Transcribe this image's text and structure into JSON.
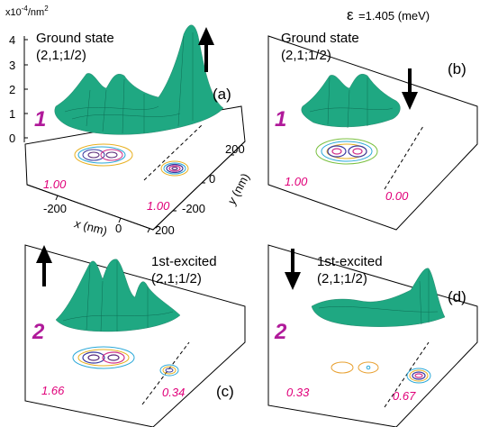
{
  "header": {
    "ylabel_prefix": "x10",
    "ylabel_exp": "-4",
    "ylabel_unit": "/nm",
    "ylabel_unit_exp": "2",
    "epsilon_symbol": "ε",
    "epsilon_text": "=1.405 (meV)"
  },
  "z_ticks": [
    "4",
    "3",
    "2",
    "1",
    "0"
  ],
  "axes": {
    "x_label": "x (nm)",
    "y_label": "y (nm)",
    "x_ticks": [
      "-200",
      "0",
      "200"
    ],
    "y_ticks": [
      "200",
      "0",
      "-200"
    ]
  },
  "panels": [
    {
      "id": "a",
      "letter": "(a)",
      "state": "Ground state",
      "quantum": "(2,1;1/2)",
      "index": "1",
      "spin": "up",
      "left_value": "1.00",
      "right_value": "1.00"
    },
    {
      "id": "b",
      "letter": "(b)",
      "state": "Ground state",
      "quantum": "(2,1;1/2)",
      "index": "1",
      "spin": "down",
      "left_value": "1.00",
      "right_value": "0.00"
    },
    {
      "id": "c",
      "letter": "(c)",
      "state": "1st-excited",
      "quantum": "(2,1;1/2)",
      "index": "2",
      "spin": "up",
      "left_value": "1.66",
      "right_value": "0.34"
    },
    {
      "id": "d",
      "letter": "(d)",
      "state": "1st-excited",
      "quantum": "(2,1;1/2)",
      "index": "2",
      "spin": "down",
      "left_value": "0.33",
      "right_value": "0.67"
    }
  ],
  "colors": {
    "mesh": "#1fa882",
    "mesh_line": "#0e6e55",
    "index": "#b01a9a",
    "values": "#e0007a",
    "contours": [
      "#e8b020",
      "#2aa8d8",
      "#3a3aa0",
      "#d0308a",
      "#5a2a7a",
      "#7ac040"
    ]
  }
}
